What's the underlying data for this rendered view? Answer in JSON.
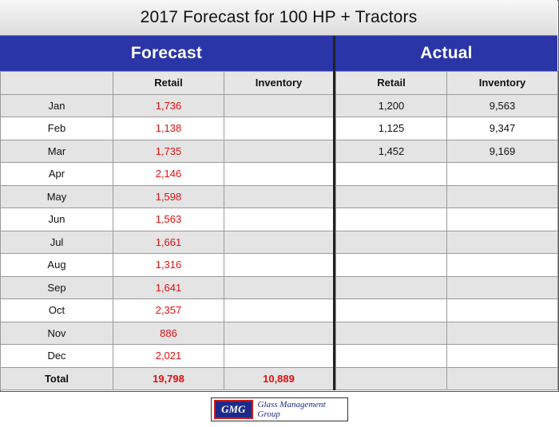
{
  "title": "2017 Forecast for 100 HP + Tractors",
  "sections": {
    "forecast": "Forecast",
    "actual": "Actual"
  },
  "columns": {
    "retail": "Retail",
    "inventory": "Inventory"
  },
  "chart_data": {
    "type": "table",
    "title": "2017 Forecast for 100 HP + Tractors",
    "groups": [
      "Forecast",
      "Actual"
    ],
    "columns": [
      "Retail",
      "Inventory",
      "Retail",
      "Inventory"
    ],
    "rows": [
      {
        "month": "Jan",
        "forecast_retail": "1,736",
        "forecast_inventory": "",
        "actual_retail": "1,200",
        "actual_inventory": "9,563"
      },
      {
        "month": "Feb",
        "forecast_retail": "1,138",
        "forecast_inventory": "",
        "actual_retail": "1,125",
        "actual_inventory": "9,347"
      },
      {
        "month": "Mar",
        "forecast_retail": "1,735",
        "forecast_inventory": "",
        "actual_retail": "1,452",
        "actual_inventory": "9,169"
      },
      {
        "month": "Apr",
        "forecast_retail": "2,146",
        "forecast_inventory": "",
        "actual_retail": "",
        "actual_inventory": ""
      },
      {
        "month": "May",
        "forecast_retail": "1,598",
        "forecast_inventory": "",
        "actual_retail": "",
        "actual_inventory": ""
      },
      {
        "month": "Jun",
        "forecast_retail": "1,563",
        "forecast_inventory": "",
        "actual_retail": "",
        "actual_inventory": ""
      },
      {
        "month": "Jul",
        "forecast_retail": "1,661",
        "forecast_inventory": "",
        "actual_retail": "",
        "actual_inventory": ""
      },
      {
        "month": "Aug",
        "forecast_retail": "1,316",
        "forecast_inventory": "",
        "actual_retail": "",
        "actual_inventory": ""
      },
      {
        "month": "Sep",
        "forecast_retail": "1,641",
        "forecast_inventory": "",
        "actual_retail": "",
        "actual_inventory": ""
      },
      {
        "month": "Oct",
        "forecast_retail": "2,357",
        "forecast_inventory": "",
        "actual_retail": "",
        "actual_inventory": ""
      },
      {
        "month": "Nov",
        "forecast_retail": "886",
        "forecast_inventory": "",
        "actual_retail": "",
        "actual_inventory": ""
      },
      {
        "month": "Dec",
        "forecast_retail": "2,021",
        "forecast_inventory": "",
        "actual_retail": "",
        "actual_inventory": ""
      }
    ],
    "total": {
      "label": "Total",
      "forecast_retail": "19,798",
      "forecast_inventory": "10,889",
      "actual_retail": "",
      "actual_inventory": ""
    },
    "colors": {
      "header_bar": "#2a35a8",
      "forecast_values": "#e01010",
      "row_stripe": "#e4e4e4"
    }
  },
  "logo": {
    "badge": "GMG",
    "name": "Glass Management Group"
  }
}
